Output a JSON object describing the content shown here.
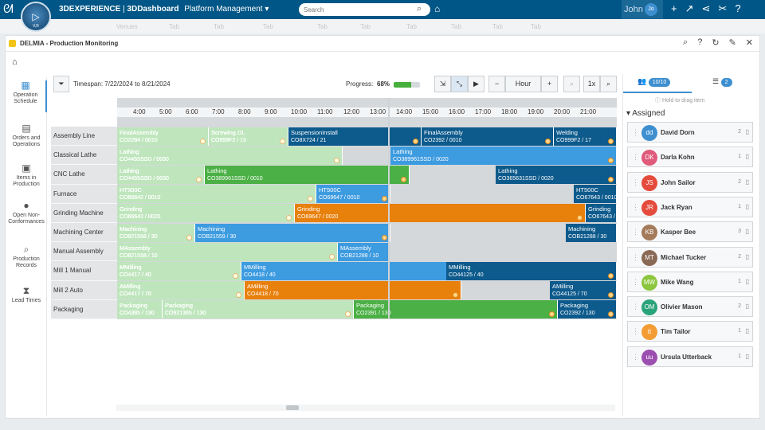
{
  "topbar": {
    "brand_bold": "3DEXPERIENCE",
    "brand_sep": " | ",
    "brand_dash": "3DDashboard",
    "app_name": "Platform Management",
    "search_placeholder": "Search",
    "user_name": "John",
    "user_initials": "Jo",
    "compass_version": "V,R"
  },
  "subtabs": [
    "Venues",
    "Tab",
    "Tab",
    "Tab",
    "Tab",
    "Tab",
    "Tab",
    "Tab",
    "Tab",
    "Tab",
    "Tab"
  ],
  "widget": {
    "title": "DELMIA - Production Monitoring"
  },
  "sidenav": [
    {
      "icon": "operation-schedule-icon",
      "label": "Operation Schedule",
      "active": true
    },
    {
      "icon": "orders-operations-icon",
      "label": "Orders and Operations"
    },
    {
      "icon": "items-production-icon",
      "label": "Items in Production"
    },
    {
      "icon": "nonconformance-icon",
      "label": "Open Non-Conformances"
    },
    {
      "icon": "production-records-icon",
      "label": "Production Records"
    },
    {
      "icon": "lead-times-icon",
      "label": "Lead Times"
    }
  ],
  "toolbar": {
    "timespan_label": "Timespan:",
    "timespan_start": "7/22/2024",
    "timespan_to": "to",
    "timespan_end": "8/21/2024",
    "progress_label": "Progress:",
    "progress_value": "68%",
    "progress_fraction": 0.68,
    "zoom_unit": "Hour",
    "zoom_level": "1x"
  },
  "timeline": {
    "hours": [
      "4:00",
      "5:00",
      "6:00",
      "7:00",
      "8:00",
      "9:00",
      "10:00",
      "11:00",
      "12:00",
      "13:00",
      "14:00",
      "15:00",
      "16:00",
      "17:00",
      "18:00",
      "19:00",
      "20:00",
      "21:00"
    ],
    "resources": [
      "Assembly Line",
      "Classical Lathe",
      "CNC Lathe",
      "Furnace",
      "Grinding Machine",
      "Machining Center",
      "Manual Assembly",
      "Mill 1 Manual",
      "Mill 2 Auto",
      "Packaging"
    ],
    "operations": [
      {
        "row": 0,
        "name": "FinalAssembly",
        "order": "CO2284 / 0010",
        "color": "#7fc27a",
        "dim": true
      },
      {
        "row": 0,
        "name": "Screwing DL",
        "order": "CO999F2 / 15",
        "color": "#7fc27a",
        "dim": true
      },
      {
        "row": 0,
        "name": "SuspensionInstall",
        "order": "CO8X724 / 21",
        "color": "#0d5a8c"
      },
      {
        "row": 0,
        "name": "FinalAssembly",
        "order": "CO2392 / 0010",
        "color": "#0d5a8c"
      },
      {
        "row": 0,
        "name": "Welding",
        "order": "CO999F2 / 17",
        "color": "#0d5a8c"
      },
      {
        "row": 1,
        "name": "Lathing",
        "order": "CO4455SSD / 0030",
        "color": "#7fc27a",
        "dim": true
      },
      {
        "row": 1,
        "name": "Lathing",
        "order": "CO389961SSD / 0020",
        "color": "#3d9be0"
      },
      {
        "row": 2,
        "name": "Lathing",
        "order": "CO4455SSD / 0030",
        "color": "#7fc27a",
        "dim": true
      },
      {
        "row": 2,
        "name": "Lathing",
        "order": "CO389961SSD / 0010",
        "color": "#4bb045"
      },
      {
        "row": 2,
        "name": "Lathing",
        "order": "CO365631SSD / 0020",
        "color": "#0d5a8c"
      },
      {
        "row": 3,
        "name": "HT500C",
        "order": "CO66642 / 0010",
        "color": "#7fc27a",
        "dim": true
      },
      {
        "row": 3,
        "name": "HT500C",
        "order": "CO69647 / 0010",
        "color": "#3d9be0"
      },
      {
        "row": 3,
        "name": "HT500C",
        "order": "CO67643 / 0010",
        "color": "#0d5a8c"
      },
      {
        "row": 4,
        "name": "Grinding",
        "order": "CO66642 / 0020",
        "color": "#7fc27a",
        "dim": true
      },
      {
        "row": 4,
        "name": "Grinding",
        "order": "CO69647 / 0020",
        "color": "#e8800c"
      },
      {
        "row": 4,
        "name": "Grinding",
        "order": "CO67643 / 0020",
        "color": "#0d5a8c"
      },
      {
        "row": 5,
        "name": "Machining",
        "order": "CO821558 / 30",
        "color": "#7fc27a",
        "dim": true
      },
      {
        "row": 5,
        "name": "Machining",
        "order": "COB21559 / 30",
        "color": "#3d9be0"
      },
      {
        "row": 5,
        "name": "Machining",
        "order": "COB21288 / 30",
        "color": "#0d5a8c"
      },
      {
        "row": 6,
        "name": "MAssembly",
        "order": "CO821558 / 10",
        "color": "#7fc27a",
        "dim": true
      },
      {
        "row": 6,
        "name": "MAssembly",
        "order": "COB21288 / 10",
        "color": "#3d9be0"
      },
      {
        "row": 7,
        "name": "MMilling",
        "order": "CO4417 / 40",
        "color": "#7fc27a",
        "dim": true
      },
      {
        "row": 7,
        "name": "MMilling",
        "order": "CO4418 / 40",
        "color": "#3d9be0"
      },
      {
        "row": 7,
        "name": "MMilling",
        "order": "CO44125 / 40",
        "color": "#0d5a8c"
      },
      {
        "row": 8,
        "name": "AMilling",
        "order": "CO4417 / 70",
        "color": "#7fc27a",
        "dim": true
      },
      {
        "row": 8,
        "name": "AMilling",
        "order": "CO4418 / 70",
        "color": "#e8800c"
      },
      {
        "row": 8,
        "name": "AMilling",
        "order": "CO44125 / 70",
        "color": "#0d5a8c"
      },
      {
        "row": 9,
        "name": "Packaging",
        "order": "CO4385 / 130",
        "color": "#7fc27a",
        "dim": true
      },
      {
        "row": 9,
        "name": "Packaging",
        "order": "CO921365 / 130",
        "color": "#7fc27a",
        "dim": true
      },
      {
        "row": 9,
        "name": "Packaging",
        "order": "CO2391 / 130",
        "color": "#4bb045"
      },
      {
        "row": 9,
        "name": "Packaging",
        "order": "CO2392 / 130",
        "color": "#0d5a8c"
      }
    ]
  },
  "rpanel": {
    "tab1_count": "10/10",
    "tab2_count": "2",
    "hint": "Hold to drag item",
    "assigned_label": "Assigned",
    "resources": [
      {
        "initials": "dd",
        "name": "David Dorn",
        "count": "2",
        "color": "#3d8fd0"
      },
      {
        "initials": "DK",
        "name": "Darla Kohn",
        "count": "1",
        "color": "#e05a7b"
      },
      {
        "initials": "JS",
        "name": "John Sailor",
        "count": "2",
        "color": "#e54b3c"
      },
      {
        "initials": "JR",
        "name": "Jack Ryan",
        "count": "1",
        "color": "#e54b3c"
      },
      {
        "initials": "KB",
        "name": "Kasper Bee",
        "count": "3",
        "color": "#a47b5a"
      },
      {
        "initials": "MT",
        "name": "Michael Tucker",
        "count": "2",
        "color": "#8a6a55"
      },
      {
        "initials": "MW",
        "name": "Mike Wang",
        "count": "1",
        "color": "#8cc63f"
      },
      {
        "initials": "OM",
        "name": "Olivier Mason",
        "count": "2",
        "color": "#2aa37a"
      },
      {
        "initials": "tt",
        "name": "Tim Tailor",
        "count": "1",
        "color": "#f39c34"
      },
      {
        "initials": "uu",
        "name": "Ursula Utterback",
        "count": "1",
        "color": "#9b4fb0"
      }
    ]
  }
}
